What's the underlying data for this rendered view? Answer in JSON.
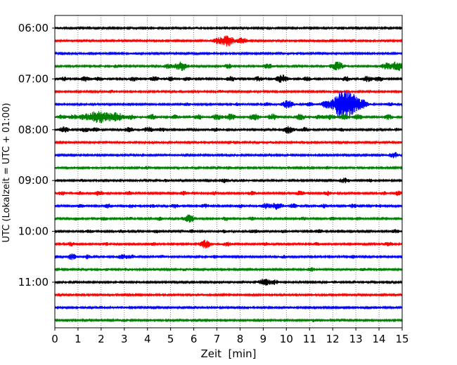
{
  "chart_data": {
    "type": "line",
    "title": "",
    "xlabel": "Zeit  [min]",
    "ylabel": "UTC (Lokalzeit = UTC + 01:00)",
    "x_range": [
      0,
      15
    ],
    "x_ticks": [
      0,
      1,
      2,
      3,
      4,
      5,
      6,
      7,
      8,
      9,
      10,
      11,
      12,
      13,
      14,
      15
    ],
    "y_ticks": [
      "06:00",
      "07:00",
      "08:00",
      "09:00",
      "10:00",
      "11:00"
    ],
    "grid": "vertical dotted",
    "trace_colors": [
      "#000000",
      "#ff0000",
      "#0000ff",
      "#008000"
    ],
    "traces": [
      {
        "start": "06:00",
        "color": "#000000",
        "bursts": [
          [
            0.2,
            0.25
          ],
          [
            6.1,
            0.25
          ],
          [
            12.2,
            0.35
          ]
        ]
      },
      {
        "start": "06:15",
        "color": "#ff0000",
        "bursts": [
          [
            7.45,
            2.5
          ],
          [
            7.0,
            1.0
          ],
          [
            8.1,
            1.2
          ]
        ]
      },
      {
        "start": "06:30",
        "color": "#0000ff",
        "bursts": [
          [
            3.5,
            0.3
          ],
          [
            10.1,
            0.4
          ]
        ]
      },
      {
        "start": "06:45",
        "color": "#008000",
        "bursts": [
          [
            2.7,
            0.7
          ],
          [
            4.9,
            0.9
          ],
          [
            5.45,
            2.0
          ],
          [
            7.5,
            1.0
          ],
          [
            9.2,
            1.1
          ],
          [
            12.2,
            2.0
          ],
          [
            14.8,
            2.2
          ],
          [
            14.3,
            1.3
          ]
        ]
      },
      {
        "start": "07:00",
        "color": "#000000",
        "bursts": [
          [
            0.4,
            0.8
          ],
          [
            1.3,
            1.0
          ],
          [
            1.9,
            0.8
          ],
          [
            3.4,
            0.9
          ],
          [
            4.3,
            1.0
          ],
          [
            5.0,
            0.8
          ],
          [
            5.7,
            0.8
          ],
          [
            7.6,
            1.1
          ],
          [
            8.8,
            1.0
          ],
          [
            9.8,
            1.8
          ],
          [
            10.9,
            0.9
          ],
          [
            12.6,
            1.0
          ],
          [
            13.5,
            1.2
          ],
          [
            14.0,
            1.0
          ]
        ]
      },
      {
        "start": "07:15",
        "color": "#ff0000",
        "bursts": [
          [
            2.4,
            0.7
          ],
          [
            7.2,
            0.5
          ],
          [
            12.6,
            0.5
          ]
        ]
      },
      {
        "start": "07:30",
        "color": "#0000ff",
        "bursts": [
          [
            3.3,
            0.5
          ],
          [
            5.7,
            0.6
          ],
          [
            7.9,
            0.6
          ],
          [
            9.2,
            0.7
          ],
          [
            10.05,
            1.8
          ],
          [
            11.0,
            0.8
          ],
          [
            11.7,
            1.2
          ],
          [
            12.3,
            1.5
          ],
          [
            12.6,
            6.5
          ],
          [
            13.3,
            1.0
          ],
          [
            14.5,
            0.7
          ]
        ]
      },
      {
        "start": "07:45",
        "color": "#008000",
        "bursts": [
          [
            0.3,
            0.8
          ],
          [
            0.8,
            1.0
          ],
          [
            1.3,
            1.3
          ],
          [
            1.85,
            3.0
          ],
          [
            2.3,
            1.3
          ],
          [
            2.7,
            1.9
          ],
          [
            3.3,
            1.0
          ],
          [
            4.2,
            1.1
          ],
          [
            5.2,
            0.9
          ],
          [
            6.2,
            1.0
          ],
          [
            7.0,
            1.2
          ],
          [
            7.6,
            1.3
          ],
          [
            8.6,
            1.5
          ],
          [
            9.4,
            1.3
          ],
          [
            10.6,
            1.4
          ],
          [
            11.4,
            1.0
          ],
          [
            11.9,
            1.1
          ],
          [
            12.5,
            1.2
          ],
          [
            13.1,
            1.1
          ],
          [
            14.4,
            1.0
          ]
        ]
      },
      {
        "start": "08:00",
        "color": "#000000",
        "bursts": [
          [
            0.4,
            1.2
          ],
          [
            1.3,
            0.9
          ],
          [
            1.75,
            0.8
          ],
          [
            3.2,
            1.0
          ],
          [
            4.05,
            1.2
          ],
          [
            4.6,
            0.8
          ],
          [
            6.9,
            0.7
          ],
          [
            10.1,
            1.6
          ],
          [
            10.8,
            1.0
          ],
          [
            12.4,
            0.6
          ],
          [
            14.8,
            0.6
          ]
        ]
      },
      {
        "start": "08:15",
        "color": "#ff0000",
        "bursts": [
          [
            3.0,
            0.3
          ],
          [
            9.4,
            0.3
          ],
          [
            14.9,
            0.3
          ]
        ]
      },
      {
        "start": "08:30",
        "color": "#0000ff",
        "bursts": [
          [
            5.2,
            0.3
          ],
          [
            14.65,
            1.2
          ]
        ]
      },
      {
        "start": "08:45",
        "color": "#008000",
        "bursts": [
          [
            4.0,
            0.6
          ],
          [
            7.5,
            0.5
          ],
          [
            11.8,
            0.5
          ]
        ]
      },
      {
        "start": "09:00",
        "color": "#000000",
        "bursts": [
          [
            1.2,
            0.5
          ],
          [
            4.8,
            0.5
          ],
          [
            7.3,
            1.0
          ],
          [
            8.1,
            0.6
          ],
          [
            12.5,
            1.2
          ],
          [
            13.6,
            0.6
          ]
        ]
      },
      {
        "start": "09:15",
        "color": "#ff0000",
        "bursts": [
          [
            0.3,
            0.8
          ],
          [
            1.1,
            0.6
          ],
          [
            1.9,
            1.0
          ],
          [
            3.2,
            0.8
          ],
          [
            5.6,
            0.8
          ],
          [
            6.9,
            0.7
          ],
          [
            8.5,
            0.8
          ],
          [
            10.6,
            1.0
          ],
          [
            11.8,
            0.8
          ],
          [
            14.2,
            0.7
          ],
          [
            14.8,
            1.0
          ]
        ]
      },
      {
        "start": "09:30",
        "color": "#0000ff",
        "bursts": [
          [
            1.1,
            0.7
          ],
          [
            2.3,
            0.8
          ],
          [
            3.3,
            0.7
          ],
          [
            4.2,
            0.6
          ],
          [
            5.2,
            0.8
          ],
          [
            6.5,
            0.8
          ],
          [
            8.0,
            0.7
          ],
          [
            9.1,
            1.2
          ],
          [
            9.6,
            1.5
          ],
          [
            10.3,
            0.9
          ],
          [
            11.6,
            0.8
          ],
          [
            12.9,
            0.8
          ],
          [
            14.0,
            0.6
          ]
        ]
      },
      {
        "start": "09:45",
        "color": "#008000",
        "bursts": [
          [
            0.9,
            0.6
          ],
          [
            2.1,
            0.7
          ],
          [
            3.2,
            0.7
          ],
          [
            4.5,
            0.7
          ],
          [
            5.8,
            1.8
          ],
          [
            7.4,
            0.8
          ],
          [
            8.5,
            0.7
          ],
          [
            10.7,
            0.7
          ],
          [
            12.0,
            0.6
          ],
          [
            13.1,
            0.6
          ]
        ]
      },
      {
        "start": "10:00",
        "color": "#000000",
        "bursts": [
          [
            1.5,
            0.6
          ],
          [
            2.9,
            0.6
          ],
          [
            4.4,
            0.6
          ],
          [
            5.9,
            0.6
          ],
          [
            7.3,
            0.6
          ],
          [
            8.6,
            0.7
          ],
          [
            9.9,
            0.6
          ],
          [
            11.4,
            0.7
          ],
          [
            14.7,
            0.7
          ]
        ]
      },
      {
        "start": "10:15",
        "color": "#ff0000",
        "bursts": [
          [
            0.7,
            0.8
          ],
          [
            2.2,
            0.6
          ],
          [
            4.3,
            0.6
          ],
          [
            6.5,
            1.8
          ],
          [
            7.45,
            0.9
          ],
          [
            9.1,
            0.6
          ],
          [
            11.3,
            0.6
          ],
          [
            14.4,
            0.9
          ]
        ]
      },
      {
        "start": "10:30",
        "color": "#0000ff",
        "bursts": [
          [
            0.75,
            1.2
          ],
          [
            1.4,
            0.8
          ],
          [
            2.9,
            1.0
          ],
          [
            3.3,
            0.8
          ],
          [
            4.6,
            0.6
          ],
          [
            6.9,
            0.6
          ],
          [
            9.9,
            0.6
          ],
          [
            12.9,
            0.6
          ]
        ]
      },
      {
        "start": "10:45",
        "color": "#008000",
        "bursts": [
          [
            2.2,
            0.5
          ],
          [
            3.1,
            0.5
          ],
          [
            5.6,
            0.5
          ],
          [
            11.1,
            0.8
          ],
          [
            13.3,
            0.5
          ]
        ]
      },
      {
        "start": "11:00",
        "color": "#000000",
        "bursts": [
          [
            9.05,
            1.5
          ],
          [
            9.5,
            0.9
          ],
          [
            12.1,
            0.5
          ]
        ]
      },
      {
        "start": "11:15",
        "color": "#ff0000",
        "bursts": [
          [
            6.4,
            0.2
          ]
        ]
      },
      {
        "start": "11:30",
        "color": "#0000ff",
        "bursts": [
          [
            2.9,
            0.3
          ],
          [
            10.2,
            0.3
          ],
          [
            13.9,
            0.3
          ]
        ]
      },
      {
        "start": "11:45",
        "color": "#008000",
        "bursts": [
          [
            3.0,
            0.5
          ],
          [
            11.2,
            0.6
          ]
        ]
      }
    ]
  }
}
